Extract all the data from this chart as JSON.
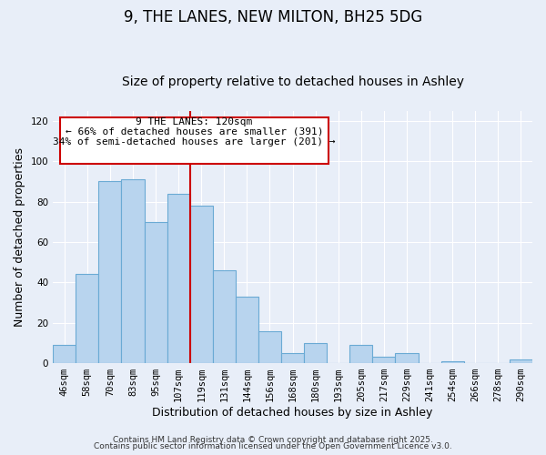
{
  "title": "9, THE LANES, NEW MILTON, BH25 5DG",
  "subtitle": "Size of property relative to detached houses in Ashley",
  "xlabel": "Distribution of detached houses by size in Ashley",
  "ylabel": "Number of detached properties",
  "bar_labels": [
    "46sqm",
    "58sqm",
    "70sqm",
    "83sqm",
    "95sqm",
    "107sqm",
    "119sqm",
    "131sqm",
    "144sqm",
    "156sqm",
    "168sqm",
    "180sqm",
    "193sqm",
    "205sqm",
    "217sqm",
    "229sqm",
    "241sqm",
    "254sqm",
    "266sqm",
    "278sqm",
    "290sqm"
  ],
  "bar_values": [
    9,
    44,
    90,
    91,
    70,
    84,
    78,
    46,
    33,
    16,
    5,
    10,
    0,
    9,
    3,
    5,
    0,
    1,
    0,
    0,
    2
  ],
  "bar_color": "#b8d4ee",
  "bar_edge_color": "#6aaad4",
  "vline_color": "#cc0000",
  "annotation_title": "9 THE LANES: 120sqm",
  "annotation_line1": "← 66% of detached houses are smaller (391)",
  "annotation_line2": "34% of semi-detached houses are larger (201) →",
  "annotation_box_color": "#cc0000",
  "ylim": [
    0,
    125
  ],
  "yticks": [
    0,
    20,
    40,
    60,
    80,
    100,
    120
  ],
  "footer1": "Contains HM Land Registry data © Crown copyright and database right 2025.",
  "footer2": "Contains public sector information licensed under the Open Government Licence v3.0.",
  "bg_color": "#e8eef8",
  "grid_color": "#ffffff",
  "title_fontsize": 12,
  "subtitle_fontsize": 10,
  "axis_label_fontsize": 9,
  "tick_fontsize": 7.5,
  "footer_fontsize": 6.5
}
